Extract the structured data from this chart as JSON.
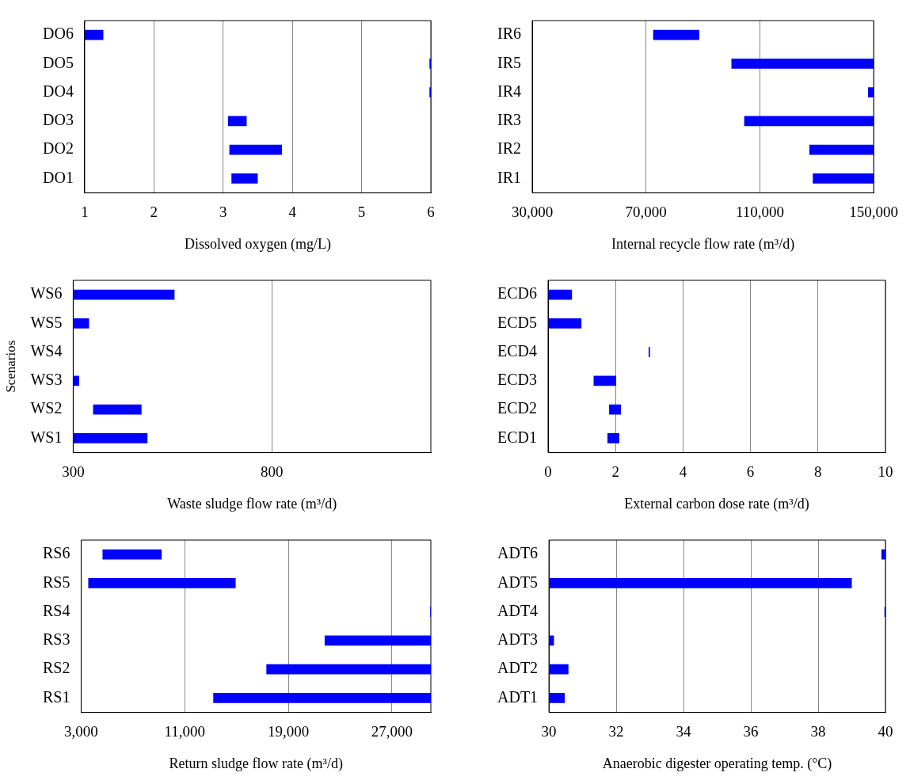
{
  "chart_data": [
    {
      "type": "bar",
      "orientation": "horizontal",
      "categories": [
        "DO6",
        "DO5",
        "DO4",
        "DO3",
        "DO2",
        "DO1"
      ],
      "base": [
        1,
        5.98,
        5.98,
        3.07,
        3.09,
        3.12
      ],
      "values": [
        0.27,
        0.02,
        0.02,
        0.27,
        0.76,
        0.38
      ],
      "color": "#0000ff",
      "xlim": [
        1,
        6
      ],
      "xticks": [
        1,
        2,
        3,
        4,
        5,
        6
      ],
      "xlabel": "Dissolved oxygen (mg/L)",
      "grid": "x",
      "legend": false
    },
    {
      "type": "bar",
      "orientation": "horizontal",
      "categories": [
        "IR6",
        "IR5",
        "IR4",
        "IR3",
        "IR2",
        "IR1"
      ],
      "base": [
        72500,
        100000,
        148000,
        104500,
        127400,
        128600
      ],
      "values": [
        16200,
        50000,
        2000,
        45500,
        22600,
        21400
      ],
      "color": "#0000ff",
      "xlim": [
        30000,
        150000
      ],
      "xticks": [
        {
          "value": 30000,
          "label": "30,000"
        },
        {
          "value": 70000,
          "label": "70,000"
        },
        {
          "value": 110000,
          "label": "110,000"
        },
        {
          "value": 150000,
          "label": "150,000"
        }
      ],
      "xlabel": "Internal recycle flow rate (m³/d)",
      "grid": "x",
      "legend": false
    },
    {
      "type": "bar",
      "orientation": "horizontal",
      "categories": [
        "WS6",
        "WS5",
        "WS4",
        "WS3",
        "WS2",
        "WS1"
      ],
      "base": [
        300,
        300,
        null,
        300,
        350,
        300
      ],
      "values": [
        255,
        40,
        null,
        15,
        122,
        187
      ],
      "color": "#0000ff",
      "xlim": [
        300,
        1200
      ],
      "xticks": [
        300,
        800
      ],
      "xlabel": "Waste sludge flow rate (m³/d)",
      "ylabel": "Scenarios",
      "grid": "x",
      "legend": false
    },
    {
      "type": "bar",
      "orientation": "horizontal",
      "categories": [
        "ECD6",
        "ECD5",
        "ECD4",
        "ECD3",
        "ECD2",
        "ECD1"
      ],
      "base": [
        0,
        0,
        2.98,
        1.35,
        1.81,
        1.76
      ],
      "values": [
        0.71,
        0.99,
        0.04,
        0.67,
        0.35,
        0.35
      ],
      "color": "#0000ff",
      "xlim": [
        0,
        10
      ],
      "xticks": [
        0,
        2,
        4,
        6,
        8,
        10
      ],
      "xlabel": "External carbon dose rate (m³/d)",
      "grid": "x",
      "legend": false
    },
    {
      "type": "bar",
      "orientation": "horizontal",
      "categories": [
        "RS6",
        "RS5",
        "RS4",
        "RS3",
        "RS2",
        "RS1"
      ],
      "base": [
        4650,
        3550,
        29950,
        21800,
        17300,
        13200
      ],
      "values": [
        4570,
        11380,
        50,
        8200,
        12700,
        16800
      ],
      "color": "#0000ff",
      "xlim": [
        3000,
        30000
      ],
      "xticks": [
        {
          "value": 3000,
          "label": "3,000"
        },
        {
          "value": 11000,
          "label": "11,000"
        },
        {
          "value": 19000,
          "label": "19,000"
        },
        {
          "value": 27000,
          "label": "27,000"
        }
      ],
      "xlabel": "Return sludge flow rate (m³/d)",
      "grid": "x",
      "legend": false
    },
    {
      "type": "bar",
      "orientation": "horizontal",
      "categories": [
        "ADT6",
        "ADT5",
        "ADT4",
        "ADT3",
        "ADT2",
        "ADT1"
      ],
      "base": [
        39.88,
        30,
        39.97,
        30,
        30,
        30
      ],
      "values": [
        0.12,
        9,
        0.03,
        0.15,
        0.58,
        0.47
      ],
      "color": "#0000ff",
      "xlim": [
        30,
        40
      ],
      "xticks": [
        30,
        32,
        34,
        36,
        38,
        40
      ],
      "xlabel": "Anaerobic digester operating temp. (°C)",
      "grid": "x",
      "legend": false
    }
  ]
}
